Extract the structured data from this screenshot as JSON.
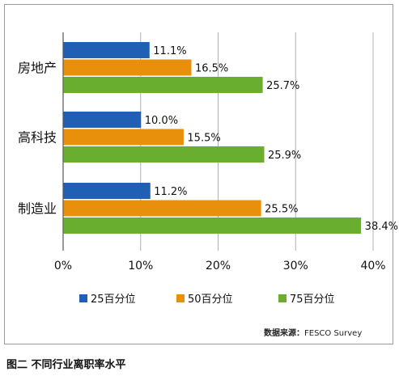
{
  "caption": "图二 不同行业离职率水平",
  "source": {
    "label": "数据来源：",
    "text": "FESCO Survey"
  },
  "colors": {
    "p25": "#1f5fb4",
    "p50": "#e8900c",
    "p75": "#6aae2f"
  },
  "chart_data": {
    "type": "bar",
    "orientation": "horizontal",
    "categories": [
      "房地产",
      "高科技",
      "制造业"
    ],
    "series": [
      {
        "name": "25百分位",
        "values": [
          11.1,
          10.0,
          11.2
        ],
        "labels": [
          "11.1%",
          "10.0%",
          "11.2%"
        ]
      },
      {
        "name": "50百分位",
        "values": [
          16.5,
          15.5,
          25.5
        ],
        "labels": [
          "16.5%",
          "15.5%",
          "25.5%"
        ]
      },
      {
        "name": "75百分位",
        "values": [
          25.7,
          25.9,
          38.4
        ],
        "labels": [
          "25.7%",
          "25.9%",
          "38.4%"
        ]
      }
    ],
    "xlim": [
      0,
      40
    ],
    "xticks": [
      "0%",
      "10%",
      "20%",
      "30%",
      "40%"
    ],
    "grid": true,
    "legend_position": "bottom"
  }
}
